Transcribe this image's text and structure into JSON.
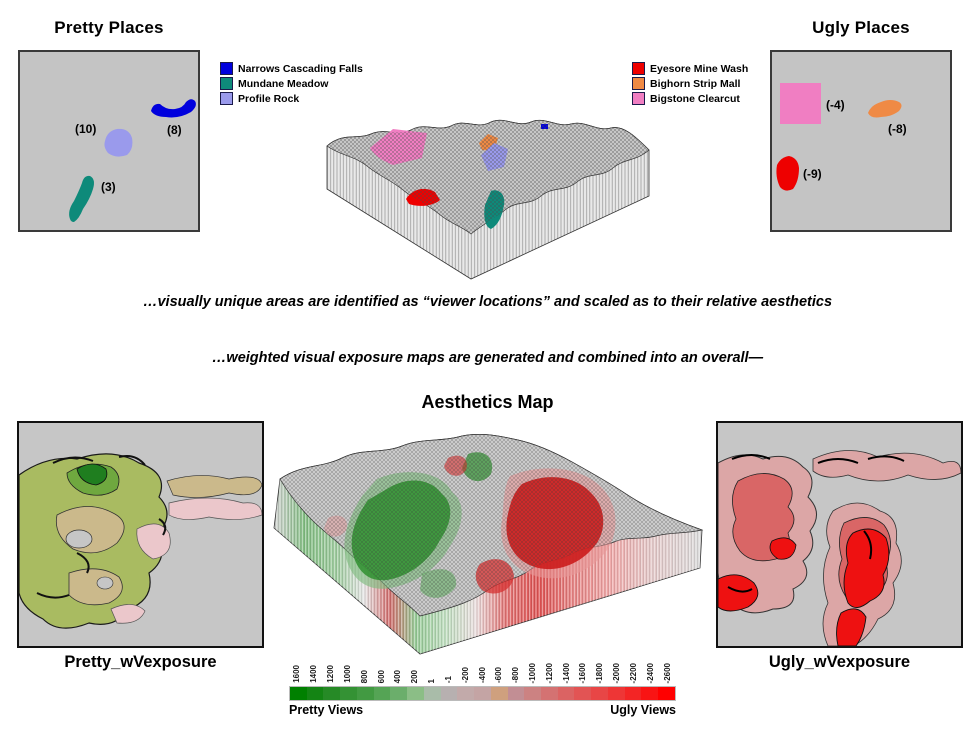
{
  "pretty_section": {
    "title": "Pretty Places",
    "features": [
      {
        "name": "Narrows Cascading Falls",
        "score_label": "(8)",
        "color": "#0000DD"
      },
      {
        "name": "Profile Rock",
        "score_label": "(10)",
        "color": "#9A9AEC"
      },
      {
        "name": "Mundane Meadow",
        "score_label": "(3)",
        "color": "#0E8A7A"
      }
    ]
  },
  "ugly_section": {
    "title": "Ugly Places",
    "features": [
      {
        "name": "Bigstone Clearcut",
        "score_label": "(-4)",
        "color": "#F07EC2"
      },
      {
        "name": "Bighorn Strip Mall",
        "score_label": "(-8)",
        "color": "#EF8A45"
      },
      {
        "name": "Eyesore Mine Wash",
        "score_label": "(-9)",
        "color": "#EE0000"
      }
    ]
  },
  "legend_pretty": {
    "items": [
      {
        "label": "Narrows Cascading Falls",
        "color": "#0000DD"
      },
      {
        "label": "Mundane Meadow",
        "color": "#0E8A7A"
      },
      {
        "label": "Profile Rock",
        "color": "#9A9AEC"
      }
    ]
  },
  "legend_ugly": {
    "items": [
      {
        "label": "Eyesore Mine Wash",
        "color": "#EE0000"
      },
      {
        "label": "Bighorn Strip Mall",
        "color": "#EF8A45"
      },
      {
        "label": "Bigstone Clearcut",
        "color": "#F07EC2"
      }
    ]
  },
  "captions": {
    "line1": "…visually unique areas are identified as “viewer locations” and scaled as to their relative aesthetics",
    "line2": "…weighted visual exposure maps are generated and combined into an overall—"
  },
  "aesthetics_map": {
    "title": "Aesthetics Map",
    "left_map_label": "Pretty_wVexposure",
    "right_map_label": "Ugly_wVexposure",
    "colorbar": {
      "ticks": [
        "1600",
        "1400",
        "1200",
        "1000",
        "800",
        "600",
        "400",
        "200",
        "1",
        "-1",
        "-200",
        "-400",
        "-600",
        "-800",
        "-1000",
        "-1200",
        "-1400",
        "-1600",
        "-1800",
        "-2000",
        "-2200",
        "-2400",
        "-2600"
      ],
      "colors": [
        "#008000",
        "#148414",
        "#268A26",
        "#349234",
        "#429A42",
        "#55A455",
        "#6BAE6B",
        "#8BBE86",
        "#A9BCA9",
        "#B7B0B0",
        "#C2AAAA",
        "#C4A4A4",
        "#CFA07E",
        "#C28E94",
        "#CC8282",
        "#D47272",
        "#DB6363",
        "#E25454",
        "#E84646",
        "#EE3636",
        "#F32525",
        "#F91414",
        "#FF0000"
      ],
      "left_caption": "Pretty Views",
      "right_caption": "Ugly Views"
    }
  }
}
